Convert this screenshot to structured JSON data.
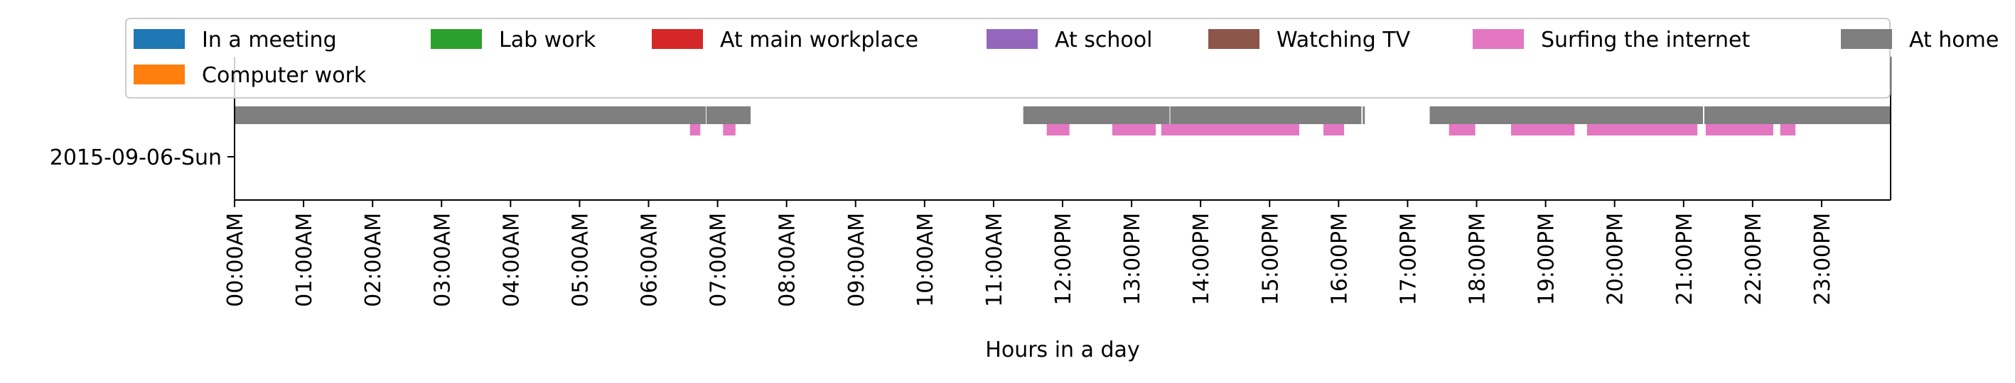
{
  "chart_data": {
    "type": "gantt",
    "xlabel": "Hours in a day",
    "xlim": [
      0,
      24
    ],
    "x_tick_labels": [
      "00:00AM",
      "01:00AM",
      "02:00AM",
      "03:00AM",
      "04:00AM",
      "05:00AM",
      "06:00AM",
      "07:00AM",
      "08:00AM",
      "09:00AM",
      "10:00AM",
      "11:00AM",
      "12:00PM",
      "13:00PM",
      "14:00PM",
      "15:00PM",
      "16:00PM",
      "17:00PM",
      "18:00PM",
      "19:00PM",
      "20:00PM",
      "21:00PM",
      "22:00PM",
      "23:00PM"
    ],
    "y_categories": [
      "2015-09-06-Sun"
    ],
    "legend_position": "top",
    "categories": [
      {
        "name": "In a meeting",
        "color": "#1f77b4",
        "intervals": []
      },
      {
        "name": "Lab work",
        "color": "#2ca02c",
        "intervals": []
      },
      {
        "name": "At main workplace",
        "color": "#d62728",
        "intervals": []
      },
      {
        "name": "At school",
        "color": "#9467bd",
        "intervals": []
      },
      {
        "name": "Watching TV",
        "color": "#8c564b",
        "intervals": []
      },
      {
        "name": "Surfing the internet",
        "color": "#e377c2",
        "intervals": [
          [
            6.6,
            6.75
          ],
          [
            7.08,
            7.26
          ],
          [
            11.77,
            12.1
          ],
          [
            12.72,
            13.35
          ],
          [
            13.43,
            15.43
          ],
          [
            15.78,
            16.08
          ],
          [
            17.6,
            17.98
          ],
          [
            18.5,
            19.42
          ],
          [
            19.6,
            21.2
          ],
          [
            21.32,
            22.3
          ],
          [
            22.4,
            22.62
          ]
        ]
      },
      {
        "name": "At home",
        "color": "#7f7f7f",
        "intervals": [
          [
            0.0,
            6.83
          ],
          [
            6.84,
            7.48
          ],
          [
            11.43,
            13.55
          ],
          [
            13.56,
            16.33
          ],
          [
            16.35,
            16.38
          ],
          [
            17.32,
            21.28
          ],
          [
            21.3,
            24.0
          ]
        ]
      },
      {
        "name": "Computer work",
        "color": "#ff7f0e",
        "intervals": []
      }
    ]
  }
}
